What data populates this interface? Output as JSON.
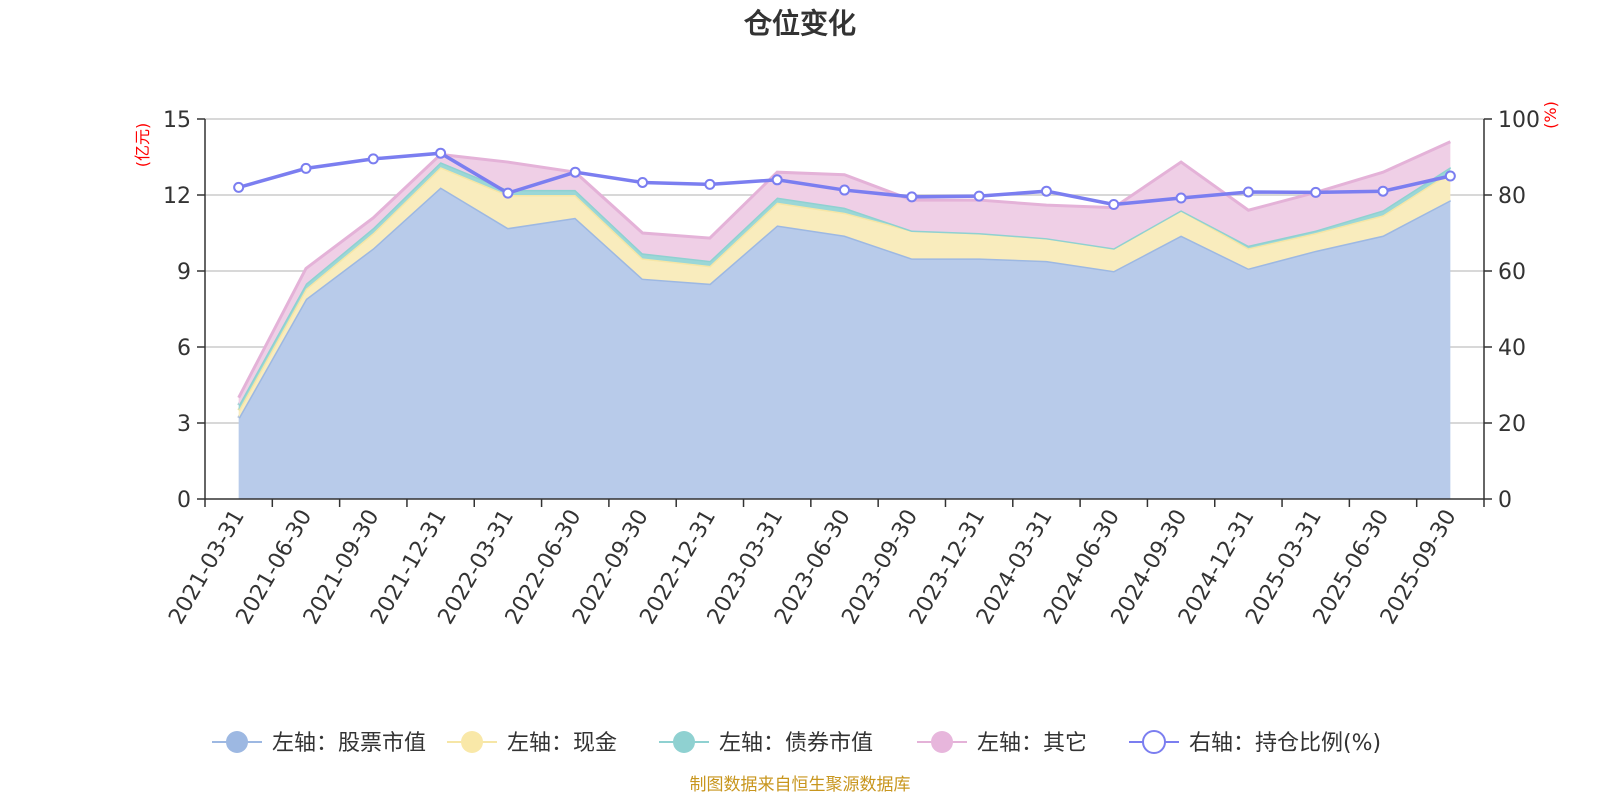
{
  "chart_data": {
    "type": "area",
    "title": "仓位变化",
    "source": "制图数据来自恒生聚源数据库",
    "left_axis": {
      "unit": "(亿元)",
      "ylim": [
        0,
        15
      ],
      "ticks": [
        "0",
        "3",
        "6",
        "9",
        "12",
        "15"
      ]
    },
    "right_axis": {
      "unit": "(%)",
      "ylim": [
        0,
        100
      ],
      "ticks": [
        "0",
        "20",
        "40",
        "60",
        "80",
        "100"
      ]
    },
    "categories": [
      "2021-03-31",
      "2021-06-30",
      "2021-09-30",
      "2021-12-31",
      "2022-03-31",
      "2022-06-30",
      "2022-09-30",
      "2022-12-31",
      "2023-03-31",
      "2023-06-30",
      "2023-09-30",
      "2023-12-31",
      "2024-03-31",
      "2024-06-30",
      "2024-09-30",
      "2024-12-31",
      "2025-03-31",
      "2025-06-30",
      "2025-09-30"
    ],
    "stacked_series": [
      {
        "name": "左轴：股票市值",
        "fill": "#b8cbea",
        "line": "#9db8e2",
        "values": [
          3.2,
          7.9,
          9.9,
          12.3,
          10.7,
          11.1,
          8.7,
          8.5,
          10.8,
          10.4,
          9.5,
          9.5,
          9.4,
          9.0,
          10.4,
          9.1,
          9.8,
          10.4,
          11.8
        ]
      },
      {
        "name": "左轴：现金",
        "fill": "#f9ecbd",
        "line": "#f6e6a6",
        "values": [
          0.3,
          0.4,
          0.6,
          0.8,
          1.3,
          0.9,
          0.8,
          0.7,
          0.9,
          0.9,
          1.1,
          1.0,
          0.9,
          0.9,
          1.0,
          0.8,
          0.7,
          0.8,
          1.1
        ]
      },
      {
        "name": "左轴：债券市值",
        "fill": "#9bd7d7",
        "line": "#8fd1d1",
        "values": [
          0.2,
          0.2,
          0.2,
          0.2,
          0.2,
          0.2,
          0.2,
          0.2,
          0.2,
          0.2,
          0.0,
          0.0,
          0.0,
          0.0,
          0.0,
          0.1,
          0.1,
          0.2,
          0.2
        ]
      },
      {
        "name": "左轴：其它",
        "fill": "#efcfe6",
        "line": "#e4b2d8",
        "values": [
          0.3,
          0.6,
          0.4,
          0.3,
          1.1,
          0.7,
          0.8,
          0.9,
          1.0,
          1.3,
          1.2,
          1.3,
          1.3,
          1.6,
          1.9,
          1.4,
          1.5,
          1.5,
          1.0
        ]
      }
    ],
    "line_series": {
      "name": "右轴：持仓比例(%)",
      "color": "#7b7ef0",
      "values": [
        82,
        87,
        89.5,
        91,
        80.5,
        86,
        83.3,
        82.8,
        84,
        81.3,
        79.5,
        79.7,
        81,
        77.5,
        79.2,
        80.8,
        80.7,
        81,
        85
      ]
    },
    "legend_position": "bottom",
    "grid": true
  }
}
